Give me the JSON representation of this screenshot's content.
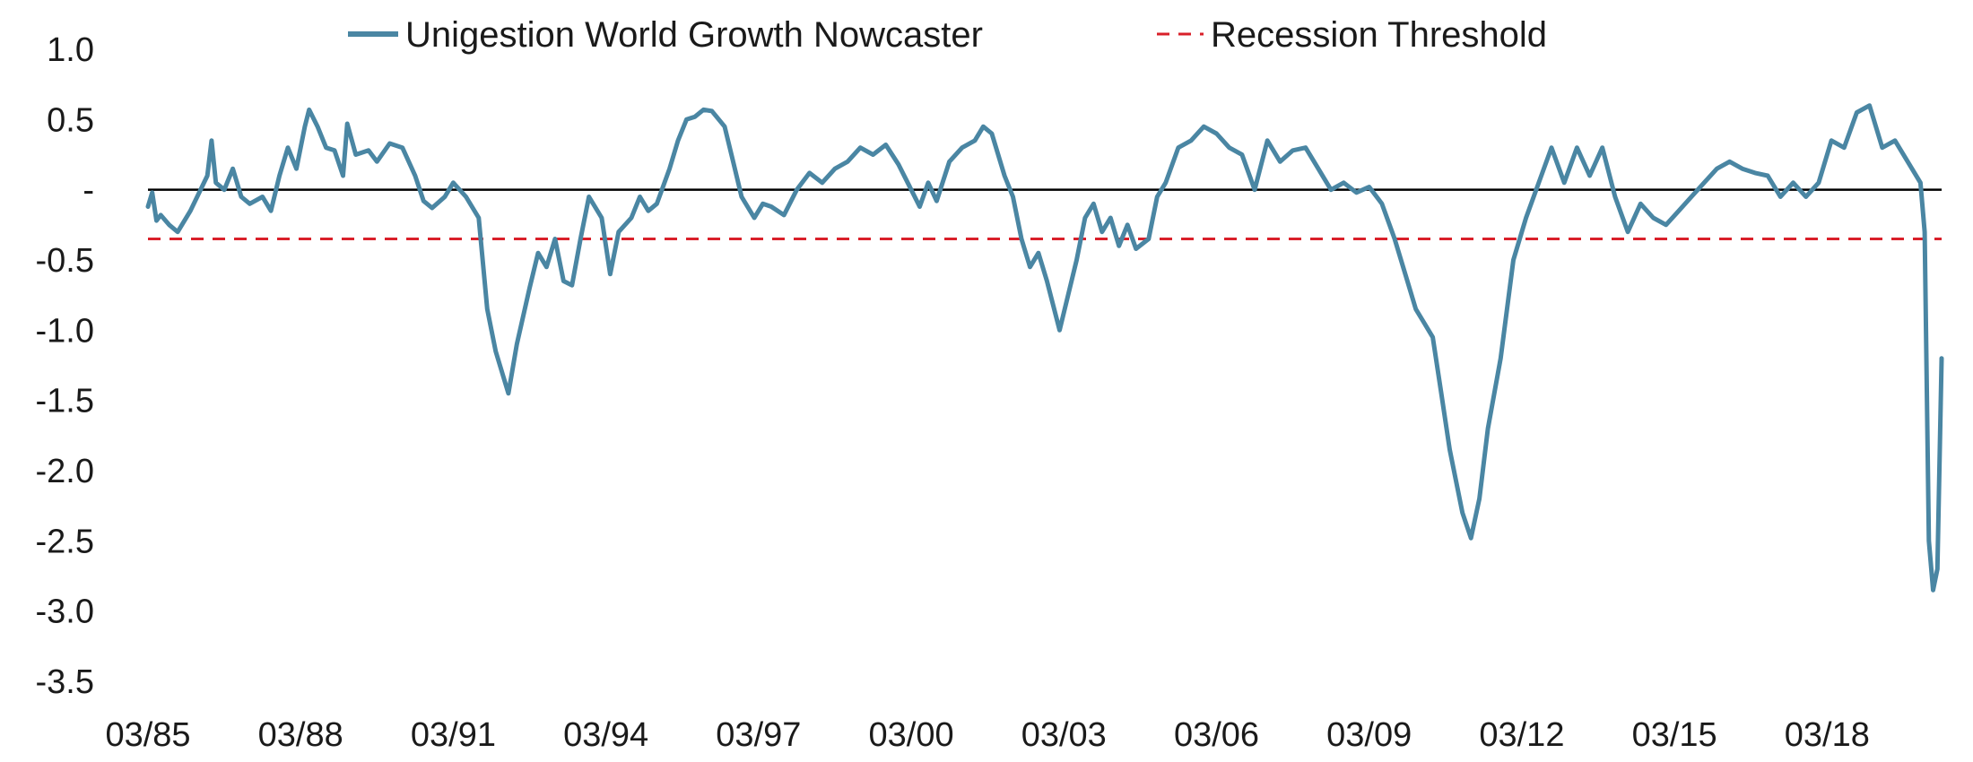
{
  "chart_data": {
    "type": "line",
    "title": "",
    "xlabel": "",
    "ylabel": "",
    "ylim": [
      -3.5,
      1.0
    ],
    "y_ticks": [
      {
        "value": 1.0,
        "label": "1.0"
      },
      {
        "value": 0.5,
        "label": "0.5"
      },
      {
        "value": 0.0,
        "label": "-"
      },
      {
        "value": -0.5,
        "label": "-0.5"
      },
      {
        "value": -1.0,
        "label": "-1.0"
      },
      {
        "value": -1.5,
        "label": "-1.5"
      },
      {
        "value": -2.0,
        "label": "-2.0"
      },
      {
        "value": -2.5,
        "label": "-2.5"
      },
      {
        "value": -3.0,
        "label": "-3.0"
      },
      {
        "value": -3.5,
        "label": "-3.5"
      }
    ],
    "x_ticks": [
      "03/85",
      "03/88",
      "03/91",
      "03/94",
      "03/97",
      "03/00",
      "03/03",
      "03/06",
      "03/09",
      "03/12",
      "03/15",
      "03/18"
    ],
    "x_range": [
      "1985-03",
      "2020-06"
    ],
    "grid": false,
    "legend_position": "top",
    "zero_line": 0.0,
    "series": [
      {
        "name": "Unigestion World Growth Nowcaster",
        "style": "solid",
        "color": "#4a86a3",
        "points": [
          [
            "1985-03",
            -0.12
          ],
          [
            "1985-04",
            -0.02
          ],
          [
            "1985-05",
            -0.22
          ],
          [
            "1985-06",
            -0.18
          ],
          [
            "1985-08",
            -0.25
          ],
          [
            "1985-10",
            -0.3
          ],
          [
            "1986-01",
            -0.15
          ],
          [
            "1986-05",
            0.1
          ],
          [
            "1986-06",
            0.35
          ],
          [
            "1986-07",
            0.05
          ],
          [
            "1986-09",
            0.0
          ],
          [
            "1986-11",
            0.15
          ],
          [
            "1987-01",
            -0.05
          ],
          [
            "1987-03",
            -0.1
          ],
          [
            "1987-06",
            -0.05
          ],
          [
            "1987-08",
            -0.15
          ],
          [
            "1987-10",
            0.1
          ],
          [
            "1987-12",
            0.3
          ],
          [
            "1988-02",
            0.15
          ],
          [
            "1988-04",
            0.45
          ],
          [
            "1988-05",
            0.57
          ],
          [
            "1988-07",
            0.45
          ],
          [
            "1988-09",
            0.3
          ],
          [
            "1988-11",
            0.28
          ],
          [
            "1989-01",
            0.1
          ],
          [
            "1989-02",
            0.47
          ],
          [
            "1989-04",
            0.25
          ],
          [
            "1989-07",
            0.28
          ],
          [
            "1989-09",
            0.2
          ],
          [
            "1989-12",
            0.33
          ],
          [
            "1990-03",
            0.3
          ],
          [
            "1990-06",
            0.1
          ],
          [
            "1990-08",
            -0.08
          ],
          [
            "1990-10",
            -0.13
          ],
          [
            "1991-01",
            -0.05
          ],
          [
            "1991-03",
            0.05
          ],
          [
            "1991-06",
            -0.05
          ],
          [
            "1991-09",
            -0.2
          ],
          [
            "1991-11",
            -0.85
          ],
          [
            "1992-01",
            -1.15
          ],
          [
            "1992-04",
            -1.45
          ],
          [
            "1992-06",
            -1.1
          ],
          [
            "1992-09",
            -0.7
          ],
          [
            "1992-11",
            -0.45
          ],
          [
            "1993-01",
            -0.55
          ],
          [
            "1993-03",
            -0.35
          ],
          [
            "1993-05",
            -0.65
          ],
          [
            "1993-07",
            -0.68
          ],
          [
            "1993-09",
            -0.35
          ],
          [
            "1993-11",
            -0.05
          ],
          [
            "1994-02",
            -0.2
          ],
          [
            "1994-04",
            -0.6
          ],
          [
            "1994-06",
            -0.3
          ],
          [
            "1994-09",
            -0.2
          ],
          [
            "1994-11",
            -0.05
          ],
          [
            "1995-01",
            -0.15
          ],
          [
            "1995-03",
            -0.1
          ],
          [
            "1995-06",
            0.15
          ],
          [
            "1995-08",
            0.35
          ],
          [
            "1995-10",
            0.5
          ],
          [
            "1995-12",
            0.52
          ],
          [
            "1996-02",
            0.57
          ],
          [
            "1996-04",
            0.56
          ],
          [
            "1996-07",
            0.45
          ],
          [
            "1996-09",
            0.2
          ],
          [
            "1996-11",
            -0.05
          ],
          [
            "1997-02",
            -0.2
          ],
          [
            "1997-04",
            -0.1
          ],
          [
            "1997-06",
            -0.12
          ],
          [
            "1997-09",
            -0.18
          ],
          [
            "1997-12",
            0.0
          ],
          [
            "1998-03",
            0.12
          ],
          [
            "1998-06",
            0.05
          ],
          [
            "1998-09",
            0.15
          ],
          [
            "1998-12",
            0.2
          ],
          [
            "1999-03",
            0.3
          ],
          [
            "1999-06",
            0.25
          ],
          [
            "1999-09",
            0.32
          ],
          [
            "1999-12",
            0.18
          ],
          [
            "2000-03",
            0.0
          ],
          [
            "2000-05",
            -0.12
          ],
          [
            "2000-07",
            0.05
          ],
          [
            "2000-09",
            -0.08
          ],
          [
            "2000-12",
            0.2
          ],
          [
            "2001-03",
            0.3
          ],
          [
            "2001-06",
            0.35
          ],
          [
            "2001-08",
            0.45
          ],
          [
            "2001-10",
            0.4
          ],
          [
            "2002-01",
            0.1
          ],
          [
            "2002-03",
            -0.05
          ],
          [
            "2002-05",
            -0.35
          ],
          [
            "2002-07",
            -0.55
          ],
          [
            "2002-09",
            -0.45
          ],
          [
            "2002-11",
            -0.65
          ],
          [
            "2003-02",
            -1.0
          ],
          [
            "2003-04",
            -0.75
          ],
          [
            "2003-06",
            -0.5
          ],
          [
            "2003-08",
            -0.2
          ],
          [
            "2003-10",
            -0.1
          ],
          [
            "2003-12",
            -0.3
          ],
          [
            "2004-02",
            -0.2
          ],
          [
            "2004-04",
            -0.4
          ],
          [
            "2004-06",
            -0.25
          ],
          [
            "2004-08",
            -0.42
          ],
          [
            "2004-11",
            -0.35
          ],
          [
            "2005-01",
            -0.05
          ],
          [
            "2005-03",
            0.05
          ],
          [
            "2005-06",
            0.3
          ],
          [
            "2005-09",
            0.35
          ],
          [
            "2005-12",
            0.45
          ],
          [
            "2006-03",
            0.4
          ],
          [
            "2006-06",
            0.3
          ],
          [
            "2006-09",
            0.25
          ],
          [
            "2006-12",
            0.0
          ],
          [
            "2007-03",
            0.35
          ],
          [
            "2007-06",
            0.2
          ],
          [
            "2007-09",
            0.28
          ],
          [
            "2007-12",
            0.3
          ],
          [
            "2008-03",
            0.15
          ],
          [
            "2008-06",
            0.0
          ],
          [
            "2008-09",
            0.05
          ],
          [
            "2008-12",
            -0.02
          ],
          [
            "2009-03",
            0.02
          ],
          [
            "2009-06",
            -0.1
          ],
          [
            "2009-09",
            -0.35
          ],
          [
            "2009-12",
            -0.65
          ],
          [
            "2010-02",
            -0.85
          ],
          [
            "2010-04",
            -0.95
          ],
          [
            "2010-06",
            -1.05
          ],
          [
            "2010-08",
            -1.45
          ],
          [
            "2010-10",
            -1.85
          ],
          [
            "2011-01",
            -2.3
          ],
          [
            "2011-03",
            -2.48
          ],
          [
            "2011-05",
            -2.2
          ],
          [
            "2011-07",
            -1.7
          ],
          [
            "2011-10",
            -1.2
          ],
          [
            "2012-01",
            -0.5
          ],
          [
            "2012-04",
            -0.2
          ],
          [
            "2012-07",
            0.05
          ],
          [
            "2012-10",
            0.3
          ],
          [
            "2013-01",
            0.05
          ],
          [
            "2013-04",
            0.3
          ],
          [
            "2013-07",
            0.1
          ],
          [
            "2013-10",
            0.3
          ],
          [
            "2014-01",
            -0.05
          ],
          [
            "2014-04",
            -0.3
          ],
          [
            "2014-07",
            -0.1
          ],
          [
            "2014-10",
            -0.2
          ],
          [
            "2015-01",
            -0.25
          ],
          [
            "2015-04",
            -0.15
          ],
          [
            "2015-07",
            -0.05
          ],
          [
            "2015-10",
            0.05
          ],
          [
            "2016-01",
            0.15
          ],
          [
            "2016-04",
            0.2
          ],
          [
            "2016-07",
            0.15
          ],
          [
            "2016-10",
            0.12
          ],
          [
            "2017-01",
            0.1
          ],
          [
            "2017-04",
            -0.05
          ],
          [
            "2017-07",
            0.05
          ],
          [
            "2017-10",
            -0.05
          ],
          [
            "2018-01",
            0.05
          ],
          [
            "2018-04",
            0.35
          ],
          [
            "2018-07",
            0.3
          ],
          [
            "2018-10",
            0.55
          ],
          [
            "2019-01",
            0.6
          ],
          [
            "2019-04",
            0.3
          ],
          [
            "2019-07",
            0.35
          ],
          [
            "2019-10",
            0.2
          ],
          [
            "2020-01",
            0.05
          ],
          [
            "2020-02",
            -0.3
          ],
          [
            "2020-03",
            -2.5
          ],
          [
            "2020-04",
            -2.85
          ],
          [
            "2020-05",
            -2.7
          ],
          [
            "2020-06",
            -1.2
          ]
        ]
      },
      {
        "name": "Recession Threshold",
        "style": "dashed",
        "color": "#d9202a",
        "points": [
          [
            "1985-03",
            -0.35
          ],
          [
            "2020-06",
            -0.35
          ]
        ]
      }
    ]
  }
}
